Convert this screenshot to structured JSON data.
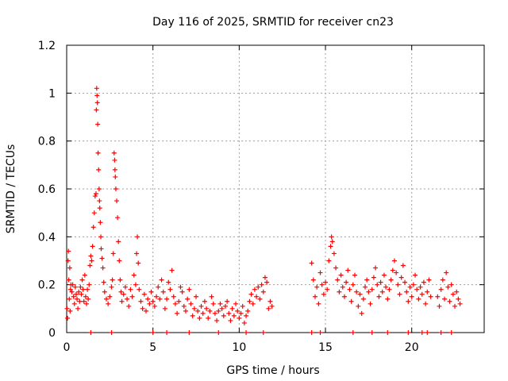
{
  "chart_data": {
    "type": "scatter",
    "title": "Day 116 of 2025, SRMTID for receiver cn23",
    "xlabel": "GPS time / hours",
    "ylabel": "SRMTID / TECUs",
    "xlim": [
      0,
      24.2
    ],
    "ylim": [
      0,
      1.2
    ],
    "xticks": [
      0,
      5,
      10,
      15,
      20
    ],
    "xtick_labels": [
      "0",
      "5",
      "10",
      "15",
      "20"
    ],
    "yticks": [
      0,
      0.2,
      0.4,
      0.6,
      0.8,
      1.0,
      1.2
    ],
    "ytick_labels": [
      "0",
      "0.2",
      "0.4",
      "0.6",
      "0.8",
      "1",
      "1.2"
    ],
    "grid": true,
    "marker": "+",
    "marker_color": "#ff0000",
    "series": [
      {
        "name": "SRMTID",
        "points": [
          [
            0.02,
            0.1
          ],
          [
            0.05,
            0.06
          ],
          [
            0.08,
            0.3
          ],
          [
            0.1,
            0.34
          ],
          [
            0.12,
            0.22
          ],
          [
            0.15,
            0.14
          ],
          [
            0.18,
            0.27
          ],
          [
            0.2,
            0.09
          ],
          [
            0.22,
            0.18
          ],
          [
            0.25,
            0.2
          ],
          [
            0.3,
            0.17
          ],
          [
            0.35,
            0.2
          ],
          [
            0.4,
            0.15
          ],
          [
            0.45,
            0.12
          ],
          [
            0.5,
            0.19
          ],
          [
            0.55,
            0.16
          ],
          [
            0.6,
            0.14
          ],
          [
            0.65,
            0.1
          ],
          [
            0.7,
            0.17
          ],
          [
            0.75,
            0.13
          ],
          [
            0.8,
            0.19
          ],
          [
            0.85,
            0.16
          ],
          [
            0.9,
            0.22
          ],
          [
            0.95,
            0.18
          ],
          [
            1.0,
            0.13
          ],
          [
            1.05,
            0.24
          ],
          [
            1.1,
            0.15
          ],
          [
            1.15,
            0.12
          ],
          [
            1.2,
            0.18
          ],
          [
            1.25,
            0.14
          ],
          [
            1.3,
            0.2
          ],
          [
            1.35,
            0.28
          ],
          [
            1.4,
            0.32
          ],
          [
            1.45,
            0.3
          ],
          [
            1.5,
            0.36
          ],
          [
            1.55,
            0.44
          ],
          [
            1.6,
            0.5
          ],
          [
            1.65,
            0.57
          ],
          [
            1.7,
            0.58
          ],
          [
            1.72,
            0.93
          ],
          [
            1.74,
            1.02
          ],
          [
            1.76,
            0.99
          ],
          [
            1.78,
            0.96
          ],
          [
            1.8,
            0.87
          ],
          [
            1.82,
            0.75
          ],
          [
            1.85,
            0.68
          ],
          [
            1.88,
            0.6
          ],
          [
            1.9,
            0.55
          ],
          [
            1.92,
            0.52
          ],
          [
            1.95,
            0.46
          ],
          [
            1.98,
            0.4
          ],
          [
            2.0,
            0.35
          ],
          [
            2.05,
            0.31
          ],
          [
            2.1,
            0.27
          ],
          [
            2.15,
            0.21
          ],
          [
            2.2,
            0.17
          ],
          [
            2.3,
            0.14
          ],
          [
            2.4,
            0.12
          ],
          [
            2.5,
            0.15
          ],
          [
            2.6,
            0.19
          ],
          [
            2.65,
            0.22
          ],
          [
            2.7,
            0.33
          ],
          [
            2.75,
            0.75
          ],
          [
            2.78,
            0.72
          ],
          [
            2.8,
            0.68
          ],
          [
            2.82,
            0.65
          ],
          [
            2.85,
            0.6
          ],
          [
            2.9,
            0.55
          ],
          [
            2.95,
            0.48
          ],
          [
            3.0,
            0.38
          ],
          [
            3.05,
            0.3
          ],
          [
            3.1,
            0.22
          ],
          [
            3.15,
            0.17
          ],
          [
            3.2,
            0.13
          ],
          [
            3.3,
            0.16
          ],
          [
            3.4,
            0.19
          ],
          [
            3.5,
            0.14
          ],
          [
            3.6,
            0.11
          ],
          [
            3.7,
            0.18
          ],
          [
            3.8,
            0.15
          ],
          [
            3.9,
            0.24
          ],
          [
            4.0,
            0.2
          ],
          [
            4.05,
            0.33
          ],
          [
            4.1,
            0.4
          ],
          [
            4.15,
            0.29
          ],
          [
            4.2,
            0.18
          ],
          [
            4.3,
            0.13
          ],
          [
            4.4,
            0.1
          ],
          [
            4.5,
            0.16
          ],
          [
            4.6,
            0.09
          ],
          [
            4.7,
            0.14
          ],
          [
            4.8,
            0.12
          ],
          [
            4.9,
            0.17
          ],
          [
            5.0,
            0.13
          ],
          [
            5.1,
            0.11
          ],
          [
            5.2,
            0.15
          ],
          [
            5.3,
            0.19
          ],
          [
            5.4,
            0.14
          ],
          [
            5.5,
            0.22
          ],
          [
            5.6,
            0.17
          ],
          [
            5.7,
            0.1
          ],
          [
            5.8,
            0.14
          ],
          [
            5.9,
            0.21
          ],
          [
            6.0,
            0.18
          ],
          [
            6.1,
            0.26
          ],
          [
            6.2,
            0.15
          ],
          [
            6.3,
            0.12
          ],
          [
            6.4,
            0.08
          ],
          [
            6.5,
            0.13
          ],
          [
            6.6,
            0.19
          ],
          [
            6.7,
            0.17
          ],
          [
            6.8,
            0.11
          ],
          [
            6.9,
            0.09
          ],
          [
            7.0,
            0.14
          ],
          [
            7.1,
            0.18
          ],
          [
            7.2,
            0.12
          ],
          [
            7.3,
            0.07
          ],
          [
            7.4,
            0.1
          ],
          [
            7.5,
            0.15
          ],
          [
            7.6,
            0.09
          ],
          [
            7.7,
            0.06
          ],
          [
            7.8,
            0.11
          ],
          [
            7.9,
            0.08
          ],
          [
            8.0,
            0.13
          ],
          [
            8.1,
            0.1
          ],
          [
            8.2,
            0.06
          ],
          [
            8.3,
            0.09
          ],
          [
            8.4,
            0.15
          ],
          [
            8.5,
            0.12
          ],
          [
            8.6,
            0.08
          ],
          [
            8.7,
            0.05
          ],
          [
            8.8,
            0.09
          ],
          [
            8.9,
            0.12
          ],
          [
            9.0,
            0.1
          ],
          [
            9.1,
            0.07
          ],
          [
            9.2,
            0.11
          ],
          [
            9.3,
            0.13
          ],
          [
            9.4,
            0.08
          ],
          [
            9.5,
            0.05
          ],
          [
            9.6,
            0.1
          ],
          [
            9.7,
            0.07
          ],
          [
            9.8,
            0.12
          ],
          [
            9.9,
            0.09
          ],
          [
            10.0,
            0.06
          ],
          [
            10.1,
            0.08
          ],
          [
            10.2,
            0.11
          ],
          [
            10.3,
            0.04
          ],
          [
            10.4,
            0.07
          ],
          [
            10.5,
            0.09
          ],
          [
            10.6,
            0.13
          ],
          [
            10.7,
            0.16
          ],
          [
            10.8,
            0.12
          ],
          [
            10.9,
            0.18
          ],
          [
            11.0,
            0.15
          ],
          [
            11.1,
            0.19
          ],
          [
            11.2,
            0.14
          ],
          [
            11.3,
            0.2
          ],
          [
            11.4,
            0.17
          ],
          [
            11.5,
            0.23
          ],
          [
            11.6,
            0.21
          ],
          [
            11.7,
            0.1
          ],
          [
            11.8,
            0.13
          ],
          [
            11.9,
            0.11
          ],
          [
            14.2,
            0.29
          ],
          [
            14.3,
            0.22
          ],
          [
            14.4,
            0.15
          ],
          [
            14.5,
            0.19
          ],
          [
            14.6,
            0.12
          ],
          [
            14.7,
            0.25
          ],
          [
            14.8,
            0.2
          ],
          [
            14.9,
            0.16
          ],
          [
            15.0,
            0.21
          ],
          [
            15.1,
            0.18
          ],
          [
            15.2,
            0.3
          ],
          [
            15.3,
            0.36
          ],
          [
            15.35,
            0.4
          ],
          [
            15.4,
            0.38
          ],
          [
            15.5,
            0.33
          ],
          [
            15.6,
            0.27
          ],
          [
            15.7,
            0.22
          ],
          [
            15.8,
            0.17
          ],
          [
            15.9,
            0.24
          ],
          [
            16.0,
            0.19
          ],
          [
            16.1,
            0.15
          ],
          [
            16.2,
            0.21
          ],
          [
            16.3,
            0.26
          ],
          [
            16.4,
            0.18
          ],
          [
            16.5,
            0.13
          ],
          [
            16.6,
            0.2
          ],
          [
            16.7,
            0.24
          ],
          [
            16.8,
            0.17
          ],
          [
            16.9,
            0.11
          ],
          [
            17.0,
            0.16
          ],
          [
            17.1,
            0.08
          ],
          [
            17.2,
            0.14
          ],
          [
            17.3,
            0.19
          ],
          [
            17.4,
            0.22
          ],
          [
            17.5,
            0.17
          ],
          [
            17.6,
            0.12
          ],
          [
            17.7,
            0.18
          ],
          [
            17.8,
            0.23
          ],
          [
            17.9,
            0.27
          ],
          [
            18.0,
            0.2
          ],
          [
            18.1,
            0.15
          ],
          [
            18.2,
            0.21
          ],
          [
            18.3,
            0.17
          ],
          [
            18.4,
            0.24
          ],
          [
            18.5,
            0.19
          ],
          [
            18.6,
            0.14
          ],
          [
            18.7,
            0.18
          ],
          [
            18.8,
            0.22
          ],
          [
            18.9,
            0.26
          ],
          [
            19.0,
            0.3
          ],
          [
            19.1,
            0.25
          ],
          [
            19.2,
            0.2
          ],
          [
            19.3,
            0.16
          ],
          [
            19.4,
            0.23
          ],
          [
            19.5,
            0.28
          ],
          [
            19.6,
            0.21
          ],
          [
            19.7,
            0.17
          ],
          [
            19.8,
            0.13
          ],
          [
            19.9,
            0.19
          ],
          [
            20.0,
            0.15
          ],
          [
            20.1,
            0.2
          ],
          [
            20.2,
            0.24
          ],
          [
            20.3,
            0.18
          ],
          [
            20.4,
            0.14
          ],
          [
            20.5,
            0.19
          ],
          [
            20.6,
            0.16
          ],
          [
            20.7,
            0.21
          ],
          [
            20.8,
            0.12
          ],
          [
            20.9,
            0.17
          ],
          [
            21.0,
            0.22
          ],
          [
            21.1,
            0.15
          ],
          [
            21.5,
            0.15
          ],
          [
            21.6,
            0.11
          ],
          [
            21.7,
            0.18
          ],
          [
            21.8,
            0.22
          ],
          [
            21.9,
            0.14
          ],
          [
            22.0,
            0.25
          ],
          [
            22.1,
            0.19
          ],
          [
            22.2,
            0.13
          ],
          [
            22.3,
            0.2
          ],
          [
            22.4,
            0.16
          ],
          [
            22.5,
            0.11
          ],
          [
            22.6,
            0.17
          ],
          [
            22.7,
            0.14
          ],
          [
            22.8,
            0.12
          ],
          [
            1.4,
            0.0
          ],
          [
            2.6,
            0.0
          ],
          [
            5.0,
            0.0
          ],
          [
            5.8,
            0.0
          ],
          [
            7.1,
            0.0
          ],
          [
            8.8,
            0.0
          ],
          [
            10.4,
            0.0
          ],
          [
            11.4,
            0.0
          ],
          [
            14.2,
            0.0
          ],
          [
            14.7,
            0.0
          ],
          [
            16.6,
            0.0
          ],
          [
            17.7,
            0.0
          ],
          [
            18.6,
            0.0
          ],
          [
            19.8,
            0.0
          ],
          [
            20.6,
            0.0
          ],
          [
            20.9,
            0.0
          ],
          [
            21.7,
            0.0
          ],
          [
            22.3,
            0.0
          ]
        ]
      }
    ]
  }
}
